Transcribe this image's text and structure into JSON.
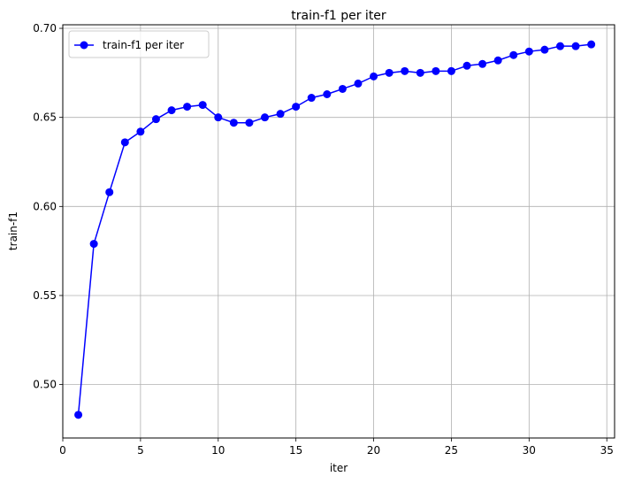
{
  "chart_data": {
    "type": "line",
    "title": "train-f1 per iter",
    "xlabel": "iter",
    "ylabel": "train-f1",
    "xlim": [
      0.0,
      35.5
    ],
    "ylim": [
      0.47,
      0.702
    ],
    "xticks": [
      0,
      5,
      10,
      15,
      20,
      25,
      30,
      35
    ],
    "yticks": [
      0.5,
      0.55,
      0.6,
      0.65,
      0.7
    ],
    "xtick_labels": [
      "0",
      "5",
      "10",
      "15",
      "20",
      "25",
      "30",
      "35"
    ],
    "ytick_labels": [
      "0.50",
      "0.55",
      "0.60",
      "0.65",
      "0.70"
    ],
    "grid": true,
    "legend_position": "top-left",
    "series": [
      {
        "name": "train-f1 per iter",
        "color": "#0000ff",
        "marker": "circle",
        "x": [
          1,
          2,
          3,
          4,
          5,
          6,
          7,
          8,
          9,
          10,
          11,
          12,
          13,
          14,
          15,
          16,
          17,
          18,
          19,
          20,
          21,
          22,
          23,
          24,
          25,
          26,
          27,
          28,
          29,
          30,
          31,
          32,
          33,
          34
        ],
        "y": [
          0.483,
          0.579,
          0.608,
          0.636,
          0.642,
          0.649,
          0.654,
          0.656,
          0.657,
          0.65,
          0.647,
          0.647,
          0.65,
          0.652,
          0.656,
          0.661,
          0.663,
          0.666,
          0.669,
          0.673,
          0.675,
          0.676,
          0.675,
          0.676,
          0.676,
          0.679,
          0.68,
          0.682,
          0.685,
          0.687,
          0.688,
          0.69,
          0.69,
          0.691
        ]
      }
    ]
  }
}
